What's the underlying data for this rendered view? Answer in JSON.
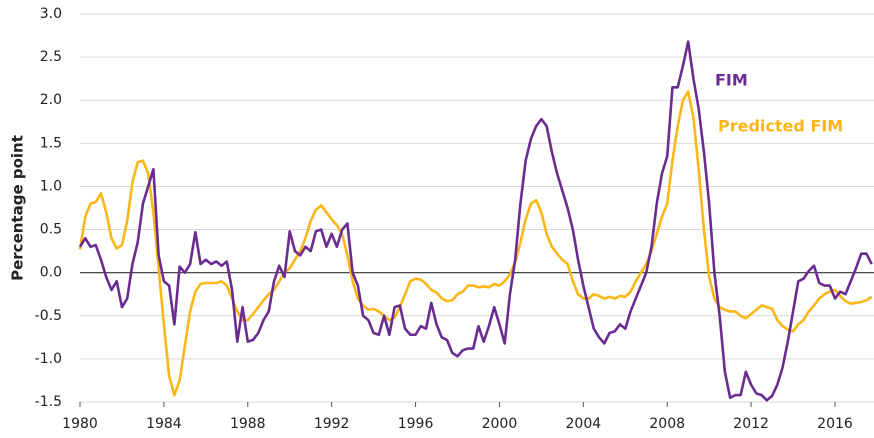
{
  "chart_data": {
    "type": "line",
    "y_label": "Percentage point",
    "xlim": [
      1980,
      2017.86
    ],
    "xticks": [
      1980,
      1984,
      1988,
      1992,
      1996,
      2000,
      2004,
      2008,
      2012,
      2016
    ],
    "ylim": [
      -1.5,
      3.0
    ],
    "yticks": [
      -1.5,
      {
        "value": -1.0,
        "label": "-1.0"
      },
      -0.5,
      {
        "value": 0,
        "label": "0.0"
      },
      0.5,
      {
        "value": 1,
        "label": "1.0"
      },
      1.5,
      {
        "value": 2,
        "label": "2.0"
      },
      2.5,
      {
        "value": 3,
        "label": "3.0"
      }
    ],
    "grid": true,
    "x": [
      1980,
      1980.25,
      1980.5,
      1980.75,
      1981,
      1981.25,
      1981.5,
      1981.75,
      1982,
      1982.25,
      1982.5,
      1982.75,
      1983,
      1983.25,
      1983.5,
      1983.75,
      1984,
      1984.25,
      1984.5,
      1984.75,
      1985,
      1985.25,
      1985.5,
      1985.75,
      1986,
      1986.25,
      1986.5,
      1986.75,
      1987,
      1987.25,
      1987.5,
      1987.75,
      1988,
      1988.25,
      1988.5,
      1988.75,
      1989,
      1989.25,
      1989.5,
      1989.75,
      1990,
      1990.25,
      1990.5,
      1990.75,
      1991,
      1991.25,
      1991.5,
      1991.75,
      1992,
      1992.25,
      1992.5,
      1992.75,
      1993,
      1993.25,
      1993.5,
      1993.75,
      1994,
      1994.25,
      1994.5,
      1994.75,
      1995,
      1995.25,
      1995.5,
      1995.75,
      1996,
      1996.25,
      1996.5,
      1996.75,
      1997,
      1997.25,
      1997.5,
      1997.75,
      1998,
      1998.25,
      1998.5,
      1998.75,
      1999,
      1999.25,
      1999.5,
      1999.75,
      2000,
      2000.25,
      2000.5,
      2000.75,
      2001,
      2001.25,
      2001.5,
      2001.75,
      2002,
      2002.25,
      2002.5,
      2002.75,
      2003,
      2003.25,
      2003.5,
      2003.75,
      2004,
      2004.25,
      2004.5,
      2004.75,
      2005,
      2005.25,
      2005.5,
      2005.75,
      2006,
      2006.25,
      2006.5,
      2006.75,
      2007,
      2007.25,
      2007.5,
      2007.75,
      2008,
      2008.25,
      2008.5,
      2008.75,
      2009,
      2009.25,
      2009.5,
      2009.75,
      2010,
      2010.25,
      2010.5,
      2010.75,
      2011,
      2011.25,
      2011.5,
      2011.75,
      2012,
      2012.25,
      2012.5,
      2012.75,
      2013,
      2013.25,
      2013.5,
      2013.75,
      2014,
      2014.25,
      2014.5,
      2014.75,
      2015,
      2015.25,
      2015.5,
      2015.75,
      2016,
      2016.25,
      2016.5,
      2016.75,
      2017,
      2017.25,
      2017.5,
      2017.75
    ],
    "series": [
      {
        "name": "FIM",
        "color": "#6a2c91",
        "values": [
          0.3,
          0.4,
          0.3,
          0.32,
          0.15,
          -0.05,
          -0.2,
          -0.1,
          -0.4,
          -0.3,
          0.1,
          0.35,
          0.8,
          1.0,
          1.2,
          0.2,
          -0.1,
          -0.15,
          -0.6,
          0.07,
          0.0,
          0.1,
          0.47,
          0.1,
          0.15,
          0.1,
          0.13,
          0.08,
          0.13,
          -0.2,
          -0.8,
          -0.4,
          -0.8,
          -0.78,
          -0.7,
          -0.55,
          -0.45,
          -0.1,
          0.08,
          -0.05,
          0.48,
          0.25,
          0.2,
          0.3,
          0.25,
          0.48,
          0.5,
          0.3,
          0.45,
          0.3,
          0.5,
          0.57,
          0.0,
          -0.15,
          -0.5,
          -0.55,
          -0.7,
          -0.72,
          -0.5,
          -0.72,
          -0.4,
          -0.38,
          -0.65,
          -0.72,
          -0.72,
          -0.62,
          -0.65,
          -0.35,
          -0.6,
          -0.75,
          -0.78,
          -0.93,
          -0.97,
          -0.9,
          -0.88,
          -0.88,
          -0.62,
          -0.8,
          -0.62,
          -0.4,
          -0.6,
          -0.82,
          -0.25,
          0.15,
          0.8,
          1.3,
          1.55,
          1.7,
          1.78,
          1.7,
          1.4,
          1.15,
          0.95,
          0.75,
          0.5,
          0.15,
          -0.15,
          -0.4,
          -0.65,
          -0.75,
          -0.82,
          -0.7,
          -0.68,
          -0.6,
          -0.65,
          -0.45,
          -0.3,
          -0.15,
          0.0,
          0.3,
          0.8,
          1.15,
          1.35,
          2.15,
          2.15,
          2.4,
          2.68,
          2.25,
          1.9,
          1.4,
          0.8,
          0.0,
          -0.5,
          -1.15,
          -1.45,
          -1.42,
          -1.42,
          -1.15,
          -1.3,
          -1.4,
          -1.42,
          -1.48,
          -1.43,
          -1.3,
          -1.1,
          -0.8,
          -0.45,
          -0.1,
          -0.07,
          0.02,
          0.08,
          -0.12,
          -0.15,
          -0.15,
          -0.3,
          -0.22,
          -0.25,
          -0.1,
          0.05,
          0.22,
          0.22,
          0.1
        ]
      },
      {
        "name": "Predicted FIM",
        "color": "#fbb617",
        "values": [
          0.27,
          0.65,
          0.8,
          0.82,
          0.92,
          0.7,
          0.4,
          0.28,
          0.32,
          0.6,
          1.05,
          1.28,
          1.3,
          1.15,
          0.7,
          0.05,
          -0.6,
          -1.2,
          -1.42,
          -1.25,
          -0.85,
          -0.45,
          -0.22,
          -0.13,
          -0.12,
          -0.12,
          -0.12,
          -0.1,
          -0.15,
          -0.3,
          -0.45,
          -0.55,
          -0.55,
          -0.48,
          -0.4,
          -0.32,
          -0.25,
          -0.2,
          -0.1,
          0.0,
          0.05,
          0.15,
          0.25,
          0.4,
          0.6,
          0.73,
          0.78,
          0.7,
          0.62,
          0.55,
          0.45,
          0.2,
          -0.1,
          -0.3,
          -0.38,
          -0.43,
          -0.42,
          -0.45,
          -0.5,
          -0.55,
          -0.52,
          -0.4,
          -0.25,
          -0.1,
          -0.07,
          -0.08,
          -0.13,
          -0.2,
          -0.23,
          -0.3,
          -0.33,
          -0.32,
          -0.25,
          -0.22,
          -0.15,
          -0.15,
          -0.17,
          -0.16,
          -0.17,
          -0.13,
          -0.15,
          -0.1,
          -0.02,
          0.12,
          0.35,
          0.62,
          0.8,
          0.84,
          0.7,
          0.45,
          0.3,
          0.22,
          0.15,
          0.1,
          -0.1,
          -0.25,
          -0.3,
          -0.3,
          -0.25,
          -0.27,
          -0.3,
          -0.28,
          -0.3,
          -0.27,
          -0.28,
          -0.22,
          -0.1,
          0.0,
          0.1,
          0.25,
          0.45,
          0.65,
          0.8,
          1.3,
          1.7,
          2.0,
          2.1,
          1.8,
          1.2,
          0.5,
          -0.05,
          -0.3,
          -0.4,
          -0.43,
          -0.45,
          -0.45,
          -0.5,
          -0.53,
          -0.48,
          -0.43,
          -0.38,
          -0.4,
          -0.42,
          -0.55,
          -0.62,
          -0.66,
          -0.68,
          -0.6,
          -0.55,
          -0.45,
          -0.38,
          -0.3,
          -0.25,
          -0.22,
          -0.2,
          -0.27,
          -0.33,
          -0.36,
          -0.35,
          -0.34,
          -0.32,
          -0.28
        ]
      }
    ]
  }
}
